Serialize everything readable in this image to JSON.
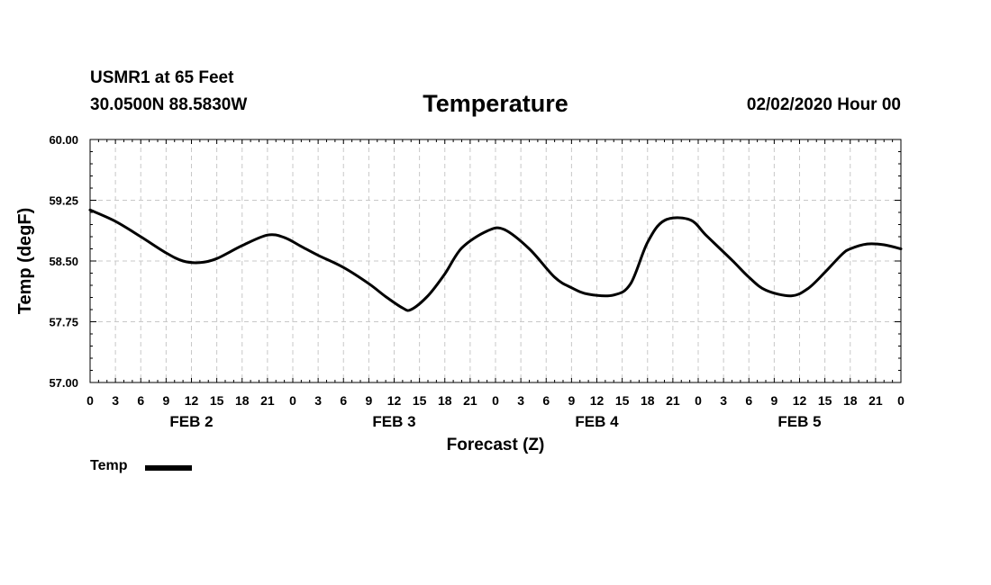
{
  "header": {
    "station": "USMR1 at 65 Feet",
    "coordinates": "30.0500N 88.5830W",
    "title": "Temperature",
    "run": "02/02/2020 Hour 00"
  },
  "chart_data": {
    "type": "line",
    "title": "Temperature",
    "xlabel": "Forecast (Z)",
    "ylabel": "Temp (degF)",
    "ylim": [
      57.0,
      60.0
    ],
    "yticks": [
      "57.00",
      "57.75",
      "58.50",
      "59.25",
      "60.00"
    ],
    "xlim": [
      0,
      96
    ],
    "xtick_labels": [
      "0",
      "3",
      "6",
      "9",
      "12",
      "15",
      "18",
      "21",
      "0",
      "3",
      "6",
      "9",
      "12",
      "15",
      "18",
      "21",
      "0",
      "3",
      "6",
      "9",
      "12",
      "15",
      "18",
      "21",
      "0",
      "3",
      "6",
      "9",
      "12",
      "15",
      "18",
      "21",
      "0"
    ],
    "day_labels": [
      {
        "label": "FEB 2",
        "center_hour": 12
      },
      {
        "label": "FEB 3",
        "center_hour": 36
      },
      {
        "label": "FEB 4",
        "center_hour": 60
      },
      {
        "label": "FEB 5",
        "center_hour": 84
      }
    ],
    "grid": true,
    "legend": "bottom-left",
    "series": [
      {
        "name": "Temp",
        "color": "#000000",
        "x": [
          0,
          3,
          6,
          9,
          11,
          13,
          15,
          18,
          21,
          23,
          25,
          27,
          30,
          33,
          35,
          37,
          38,
          40,
          42,
          44,
          47,
          49,
          52,
          55,
          57,
          59,
          62,
          64,
          66,
          68,
          71,
          73,
          76,
          78,
          80,
          83,
          85,
          87,
          89,
          90,
          92,
          94,
          96
        ],
        "y": [
          59.13,
          58.99,
          58.8,
          58.6,
          58.5,
          58.48,
          58.53,
          58.69,
          58.82,
          58.79,
          58.68,
          58.57,
          58.42,
          58.22,
          58.06,
          57.92,
          57.9,
          58.07,
          58.34,
          58.66,
          58.87,
          58.89,
          58.65,
          58.3,
          58.17,
          58.09,
          58.08,
          58.22,
          58.73,
          59.0,
          59.01,
          58.81,
          58.51,
          58.3,
          58.14,
          58.07,
          58.16,
          58.36,
          58.58,
          58.65,
          58.71,
          58.7,
          58.65
        ]
      }
    ]
  },
  "legend": {
    "label": "Temp"
  }
}
